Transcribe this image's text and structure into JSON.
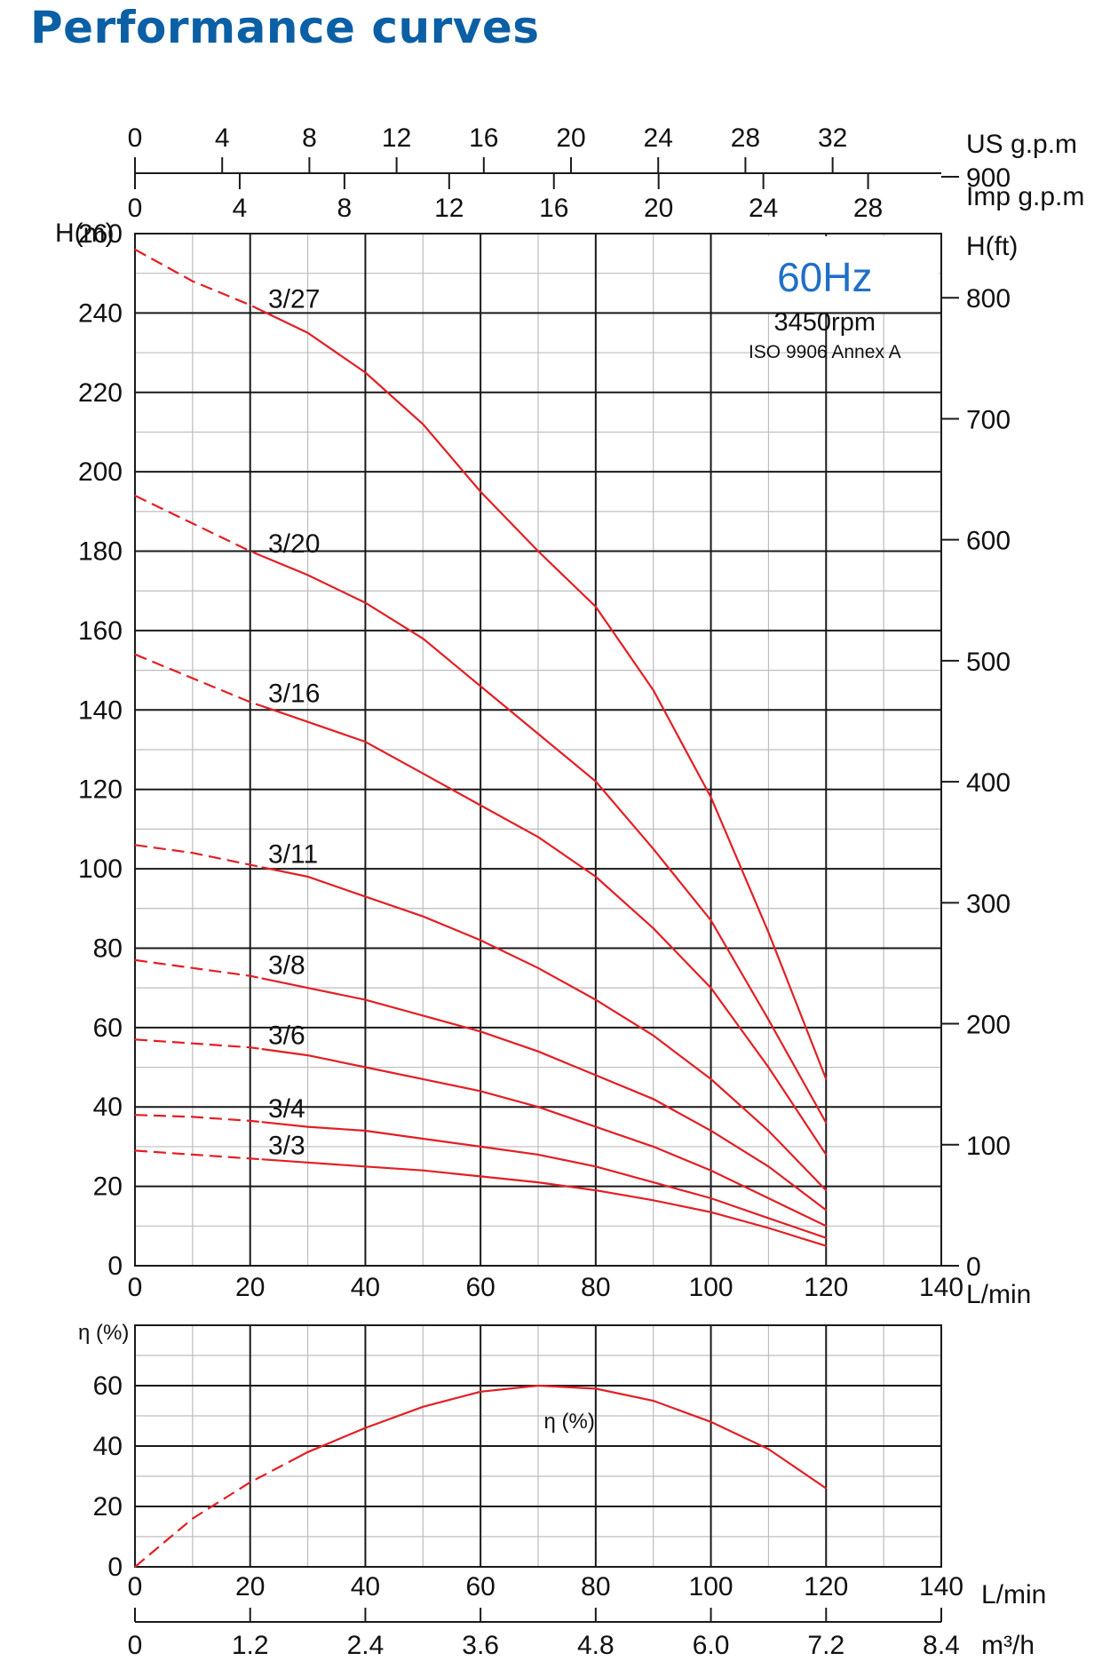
{
  "title": "Performance curves",
  "colors": {
    "title": "#0b5fa5",
    "curve": "#e31e24",
    "info_hz": "#1f6fc8",
    "grid_major": "#1a1a1a",
    "grid_minor": "#bdbdbd"
  },
  "chart_data": [
    {
      "type": "line",
      "panel": "head",
      "info": {
        "frequency": "60Hz",
        "speed": "3450rpm",
        "standard": "ISO 9906 Annex A"
      },
      "ylabel": "H(m)",
      "ylabel_right": "H(ft)",
      "xlabel": "L/min",
      "xlim": [
        0,
        140
      ],
      "ylim": [
        0,
        260
      ],
      "x_ticks": [
        "0",
        "20",
        "40",
        "60",
        "80",
        "100",
        "120",
        "140"
      ],
      "y_ticks": [
        "0",
        "20",
        "40",
        "60",
        "80",
        "100",
        "120",
        "140",
        "160",
        "180",
        "200",
        "220",
        "240",
        "260"
      ],
      "ft_ticks": [
        "0",
        "100",
        "200",
        "300",
        "400",
        "500",
        "600",
        "700",
        "800",
        "900"
      ],
      "usgpm_label": "US g.p.m",
      "usgpm_ticks": [
        "0",
        "4",
        "8",
        "12",
        "16",
        "20",
        "24",
        "28",
        "32"
      ],
      "impgpm_label": "Imp g.p.m",
      "impgpm_ticks": [
        "0",
        "4",
        "8",
        "12",
        "16",
        "20",
        "24",
        "28"
      ],
      "dashed_until_x": 22,
      "series": [
        {
          "name": "3/27",
          "x": [
            0,
            10,
            20,
            30,
            40,
            50,
            60,
            70,
            80,
            90,
            100,
            110,
            120
          ],
          "y": [
            256,
            248,
            242,
            235,
            225,
            212,
            195,
            180,
            166,
            145,
            118,
            84,
            47
          ]
        },
        {
          "name": "3/20",
          "x": [
            0,
            10,
            20,
            30,
            40,
            50,
            60,
            70,
            80,
            90,
            100,
            110,
            120
          ],
          "y": [
            194,
            187,
            180,
            174,
            167,
            158,
            146,
            134,
            122,
            105,
            87,
            62,
            36
          ]
        },
        {
          "name": "3/16",
          "x": [
            0,
            10,
            20,
            30,
            40,
            50,
            60,
            70,
            80,
            90,
            100,
            110,
            120
          ],
          "y": [
            154,
            148,
            142,
            137,
            132,
            124,
            116,
            108,
            98,
            85,
            70,
            50,
            28
          ]
        },
        {
          "name": "3/11",
          "x": [
            0,
            10,
            20,
            30,
            40,
            50,
            60,
            70,
            80,
            90,
            100,
            110,
            120
          ],
          "y": [
            106,
            104,
            101,
            98,
            93,
            88,
            82,
            75,
            67,
            58,
            47,
            34,
            19
          ]
        },
        {
          "name": "3/8",
          "x": [
            0,
            10,
            20,
            30,
            40,
            50,
            60,
            70,
            80,
            90,
            100,
            110,
            120
          ],
          "y": [
            77,
            75,
            73,
            70,
            67,
            63,
            59,
            54,
            48,
            42,
            34,
            25,
            14
          ]
        },
        {
          "name": "3/6",
          "x": [
            0,
            10,
            20,
            30,
            40,
            50,
            60,
            70,
            80,
            90,
            100,
            110,
            120
          ],
          "y": [
            57,
            56,
            55,
            53,
            50,
            47,
            44,
            40,
            35,
            30,
            24,
            17,
            10
          ]
        },
        {
          "name": "3/4",
          "x": [
            0,
            10,
            20,
            30,
            40,
            50,
            60,
            70,
            80,
            90,
            100,
            110,
            120
          ],
          "y": [
            38,
            37.5,
            36.5,
            35,
            34,
            32,
            30,
            28,
            25,
            21,
            17,
            12,
            7
          ]
        },
        {
          "name": "3/3",
          "x": [
            0,
            10,
            20,
            30,
            40,
            50,
            60,
            70,
            80,
            90,
            100,
            110,
            120
          ],
          "y": [
            29,
            28,
            27,
            26,
            25,
            24,
            22.5,
            21,
            19,
            16.5,
            13.5,
            9.5,
            5
          ]
        }
      ]
    },
    {
      "type": "line",
      "panel": "efficiency",
      "ylabel": "η (%)",
      "xlabel": "L/min",
      "xlim": [
        0,
        140
      ],
      "ylim": [
        0,
        80
      ],
      "x_ticks": [
        "0",
        "20",
        "40",
        "60",
        "80",
        "100",
        "120",
        "140"
      ],
      "y_ticks": [
        "0",
        "20",
        "40",
        "60"
      ],
      "m3h_label": "m³/h",
      "m3h_ticks": [
        "0",
        "1.2",
        "2.4",
        "3.6",
        "4.8",
        "6.0",
        "7.2",
        "8.4"
      ],
      "dashed_until_x": 28,
      "series": [
        {
          "name": "η (%)",
          "x": [
            0,
            10,
            20,
            30,
            40,
            50,
            60,
            70,
            80,
            90,
            100,
            110,
            120
          ],
          "y": [
            0,
            16,
            28,
            38,
            46,
            53,
            58,
            60,
            59,
            55,
            48,
            39,
            26
          ]
        }
      ]
    }
  ]
}
